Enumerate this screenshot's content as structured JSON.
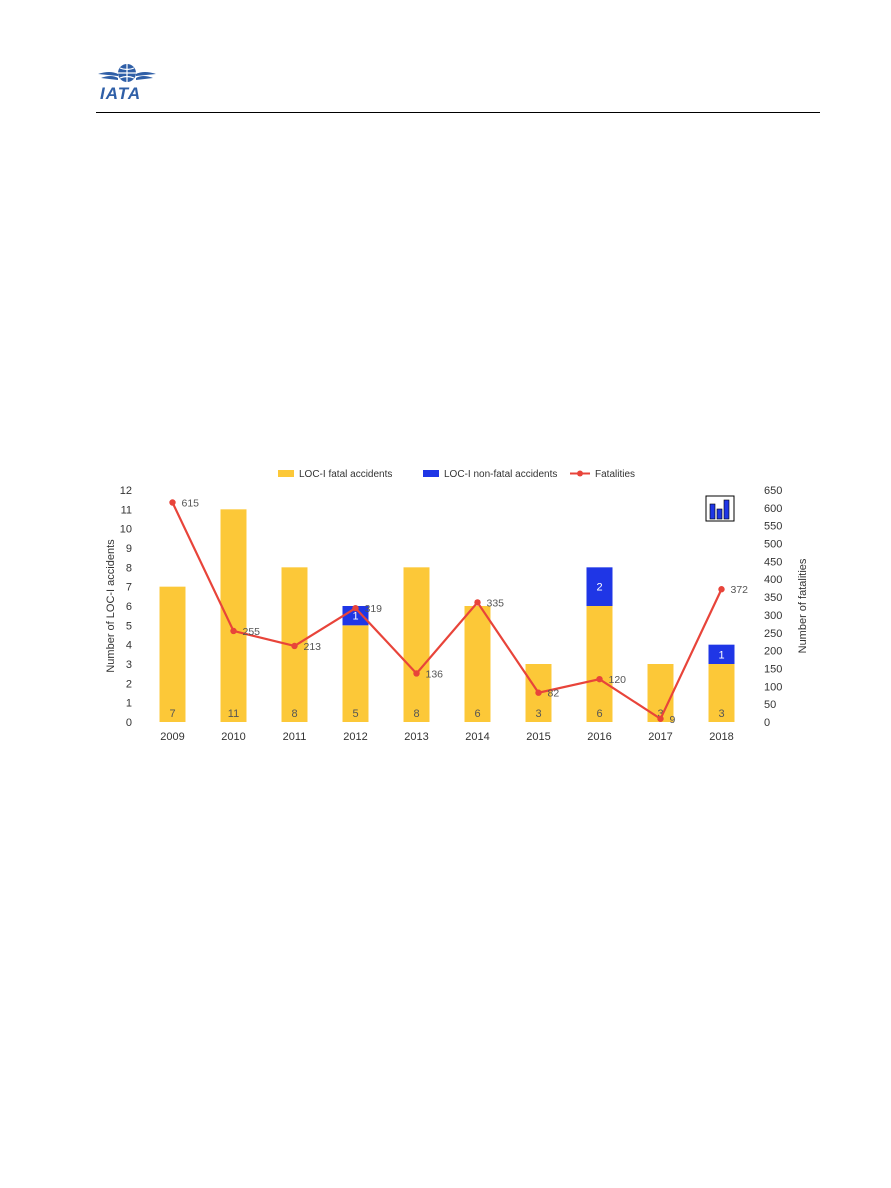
{
  "logo": {
    "text": "IATA",
    "color": "#2f5fa7"
  },
  "chart_data": {
    "type": "bar",
    "categories": [
      "2009",
      "2010",
      "2011",
      "2012",
      "2013",
      "2014",
      "2015",
      "2016",
      "2017",
      "2018"
    ],
    "series": [
      {
        "name": "LOC-I fatal accidents",
        "kind": "bar",
        "axis": "left",
        "color": "#fcc838",
        "values": [
          7,
          11,
          8,
          5,
          8,
          6,
          3,
          6,
          3,
          3
        ]
      },
      {
        "name": "LOC-I non-fatal accidents",
        "kind": "bar",
        "axis": "left",
        "color": "#1f36e6",
        "values": [
          0,
          0,
          0,
          1,
          0,
          0,
          0,
          2,
          0,
          1
        ]
      },
      {
        "name": "Fatalities",
        "kind": "line",
        "axis": "right",
        "color": "#e8443a",
        "values": [
          615,
          255,
          213,
          319,
          136,
          335,
          82,
          120,
          9,
          372
        ]
      }
    ],
    "stacked": true,
    "ylabel": "Number of LOC-I accidents",
    "y2label": "Number of fatalities",
    "ylim": [
      0,
      12
    ],
    "y2lim": [
      0,
      650
    ],
    "yticks": [
      0,
      1,
      2,
      3,
      4,
      5,
      6,
      7,
      8,
      9,
      10,
      11,
      12
    ],
    "y2ticks": [
      0,
      50,
      100,
      150,
      200,
      250,
      300,
      350,
      400,
      450,
      500,
      550,
      600,
      650
    ],
    "legend_position": "top",
    "grid": false
  }
}
